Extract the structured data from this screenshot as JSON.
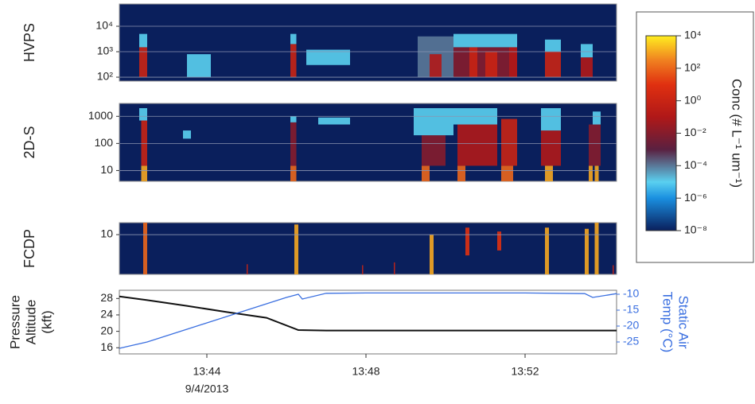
{
  "chart_data": [
    {
      "type": "heatmap",
      "ylabel": "HVPS",
      "log_y": true,
      "grid": true,
      "xlim": [
        41.8,
        54.3
      ],
      "ylim": [
        70,
        75000
      ],
      "yticks": [
        {
          "value": 100,
          "label": "10²"
        },
        {
          "value": 1000,
          "label": "10³"
        },
        {
          "value": 10000,
          "label": "10⁴"
        }
      ],
      "cells": [
        [
          42.3,
          42.5,
          100,
          1500,
          1
        ],
        [
          42.3,
          42.5,
          1500,
          5000,
          1e-05
        ],
        [
          43.5,
          44.1,
          100,
          800,
          1e-05
        ],
        [
          46.1,
          46.25,
          100,
          2000,
          1
        ],
        [
          46.1,
          46.25,
          2000,
          5000,
          1e-05
        ],
        [
          46.5,
          47.6,
          300,
          1200,
          1e-05
        ],
        [
          49.3,
          50.2,
          100,
          4000,
          0.0001
        ],
        [
          49.6,
          49.9,
          100,
          800,
          0.1
        ],
        [
          50.2,
          51.8,
          100,
          1500,
          0.01
        ],
        [
          50.6,
          50.8,
          100,
          1500,
          1
        ],
        [
          51.0,
          51.3,
          100,
          1000,
          1
        ],
        [
          51.6,
          51.8,
          100,
          1500,
          0.1
        ],
        [
          50.2,
          51.8,
          1500,
          5000,
          1e-05
        ],
        [
          52.5,
          52.9,
          100,
          1000,
          1
        ],
        [
          52.5,
          52.9,
          1000,
          3000,
          1e-05
        ],
        [
          53.4,
          53.7,
          100,
          600,
          0.1
        ],
        [
          53.4,
          53.7,
          600,
          2000,
          1e-05
        ]
      ]
    },
    {
      "type": "heatmap",
      "ylabel": "2D-S",
      "log_y": true,
      "grid": true,
      "xlim": [
        41.8,
        54.3
      ],
      "ylim": [
        4,
        3000
      ],
      "yticks": [
        10,
        100,
        1000
      ],
      "cells": [
        [
          42.35,
          42.5,
          4,
          15,
          1000
        ],
        [
          42.35,
          42.5,
          15,
          700,
          1
        ],
        [
          42.3,
          42.5,
          700,
          2000,
          1e-05
        ],
        [
          43.4,
          43.6,
          150,
          300,
          1e-05
        ],
        [
          46.1,
          46.25,
          4,
          15,
          100
        ],
        [
          46.1,
          46.25,
          15,
          600,
          0.01
        ],
        [
          46.1,
          46.25,
          600,
          1000,
          1e-05
        ],
        [
          46.8,
          47.6,
          500,
          900,
          1e-05
        ],
        [
          49.4,
          49.6,
          4,
          15,
          100
        ],
        [
          49.4,
          50.0,
          15,
          200,
          0.01
        ],
        [
          49.2,
          50.2,
          200,
          2000,
          1e-05
        ],
        [
          50.3,
          50.5,
          4,
          15,
          100
        ],
        [
          50.3,
          51.3,
          15,
          500,
          0.1
        ],
        [
          50.2,
          51.3,
          500,
          2000,
          1e-05
        ],
        [
          51.4,
          51.7,
          4,
          15,
          100
        ],
        [
          51.4,
          51.8,
          15,
          800,
          1
        ],
        [
          52.5,
          52.7,
          4,
          15,
          1000
        ],
        [
          52.4,
          52.9,
          15,
          300,
          0.1
        ],
        [
          52.4,
          52.9,
          300,
          2000,
          1e-05
        ],
        [
          53.6,
          53.7,
          4,
          15,
          1000
        ],
        [
          53.75,
          53.85,
          4,
          15,
          1000
        ],
        [
          53.6,
          53.9,
          15,
          500,
          0.01
        ],
        [
          53.7,
          53.9,
          500,
          1500,
          1e-05
        ]
      ]
    },
    {
      "type": "heatmap",
      "ylabel": "FCDP",
      "log_y": true,
      "grid": true,
      "xlim": [
        41.8,
        54.3
      ],
      "ylim": [
        1,
        20
      ],
      "yticks": [
        10
      ],
      "cells": [
        [
          42.4,
          42.5,
          1,
          20,
          100
        ],
        [
          46.2,
          46.3,
          1,
          18,
          1000
        ],
        [
          49.6,
          49.7,
          1,
          10,
          1000
        ],
        [
          50.5,
          50.6,
          3,
          15,
          10
        ],
        [
          51.3,
          51.4,
          4,
          12,
          10
        ],
        [
          52.5,
          52.6,
          1,
          15,
          1000
        ],
        [
          53.5,
          53.6,
          1,
          14,
          1000
        ],
        [
          53.75,
          53.85,
          1,
          20,
          1000
        ],
        [
          45.0,
          45.03,
          1,
          1.8,
          1
        ],
        [
          47.9,
          47.93,
          1,
          1.7,
          1
        ],
        [
          48.7,
          48.73,
          1,
          2,
          1
        ],
        [
          54.2,
          54.23,
          1,
          1.7,
          1
        ]
      ]
    },
    {
      "type": "line",
      "ylabel": [
        "Pressure",
        "Altitude",
        "(kft)"
      ],
      "y2label": [
        "Static Air",
        "Temp (°C)"
      ],
      "xlim": [
        41.8,
        54.3
      ],
      "xticks": [
        {
          "value": 44,
          "label": "13:44"
        },
        {
          "value": 48,
          "label": "13:48"
        },
        {
          "value": 52,
          "label": "13:52"
        }
      ],
      "date_label": "9/4/2013",
      "ylim": [
        14.5,
        30
      ],
      "yticks": [
        16,
        20,
        24,
        28
      ],
      "y2lim": [
        -28.75,
        -8.75
      ],
      "y2ticks": [
        -25,
        -20,
        -15,
        -10
      ],
      "series": [
        {
          "color": "#111111",
          "axis": "y",
          "x": [
            41.8,
            42.5,
            43.5,
            44.5,
            45.5,
            46.3,
            47,
            48,
            50,
            52,
            54.3
          ],
          "values": [
            28.5,
            27.6,
            26.2,
            24.7,
            23.3,
            20.3,
            20.2,
            20.2,
            20.2,
            20.2,
            20.2
          ]
        },
        {
          "color": "#3a6fe0",
          "axis": "y2",
          "x": [
            41.8,
            42.5,
            43.5,
            44.5,
            45.5,
            46.0,
            46.3,
            46.4,
            47,
            48,
            50,
            52,
            53.5,
            53.7,
            54.3
          ],
          "values": [
            -27,
            -25,
            -21,
            -17,
            -13,
            -11,
            -10,
            -11.5,
            -9.7,
            -9.6,
            -9.6,
            -9.6,
            -9.8,
            -11,
            -9.8
          ]
        }
      ]
    }
  ],
  "colorbar": {
    "label": "Conc (# L⁻¹ um⁻¹)",
    "log": true,
    "lim": [
      1e-08,
      10000
    ],
    "ticks": [
      {
        "value": 10000,
        "label": "10⁴"
      },
      {
        "value": 100,
        "label": "10²"
      },
      {
        "value": 1,
        "label": "10⁰"
      },
      {
        "value": 0.01,
        "label": "10⁻²"
      },
      {
        "value": 0.0001,
        "label": "10⁻⁴"
      },
      {
        "value": 1e-06,
        "label": "10⁻⁶"
      },
      {
        "value": 1e-08,
        "label": "10⁻⁸"
      }
    ],
    "colormap": [
      {
        "value": 1e-08,
        "color": "#0a1f5c"
      },
      {
        "value": 1e-06,
        "color": "#1a8fe0"
      },
      {
        "value": 1e-05,
        "color": "#5ad0f0"
      },
      {
        "value": 0.001,
        "color": "#5a2040"
      },
      {
        "value": 0.1,
        "color": "#b01818"
      },
      {
        "value": 10,
        "color": "#e03010"
      },
      {
        "value": 300,
        "color": "#f08020"
      },
      {
        "value": 10000,
        "color": "#ffee20"
      }
    ]
  }
}
